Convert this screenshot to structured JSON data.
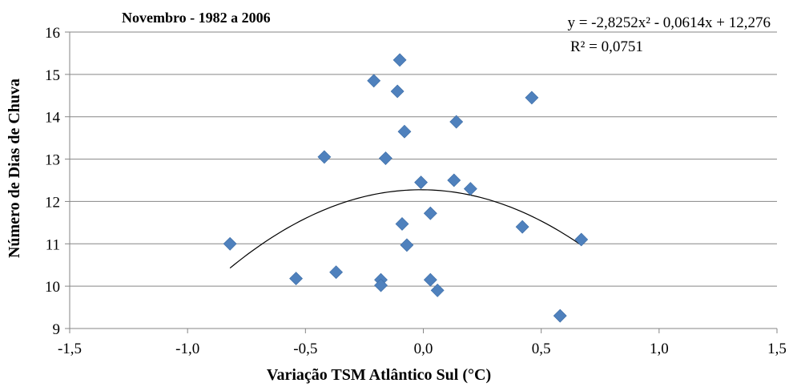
{
  "chart_data": {
    "type": "scatter",
    "title": "Novembro - 1982 a 2006",
    "xlabel": "Variação TSM Atlântico Sul (°C)",
    "ylabel": "Número de Dias de Chuva",
    "xlim": [
      -1.5,
      1.5
    ],
    "ylim": [
      9,
      16
    ],
    "xticks": [
      -1.5,
      -1.0,
      -0.5,
      0.0,
      0.5,
      1.0,
      1.5
    ],
    "xtick_labels": [
      "-1,5",
      "-1,0",
      "-0,5",
      "0,0",
      "0,5",
      "1,0",
      "1,5"
    ],
    "yticks": [
      9,
      10,
      11,
      12,
      13,
      14,
      15,
      16
    ],
    "ytick_labels": [
      "9",
      "10",
      "11",
      "12",
      "13",
      "14",
      "15",
      "16"
    ],
    "grid": "horizontal",
    "marker_color": "#4F81BD",
    "marker": "diamond",
    "points": [
      {
        "x": -0.82,
        "y": 11.0
      },
      {
        "x": -0.54,
        "y": 10.18
      },
      {
        "x": -0.42,
        "y": 13.05
      },
      {
        "x": -0.37,
        "y": 10.33
      },
      {
        "x": -0.21,
        "y": 14.85
      },
      {
        "x": -0.18,
        "y": 10.15
      },
      {
        "x": -0.18,
        "y": 10.02
      },
      {
        "x": -0.16,
        "y": 13.02
      },
      {
        "x": -0.11,
        "y": 14.6
      },
      {
        "x": -0.1,
        "y": 15.34
      },
      {
        "x": -0.09,
        "y": 11.47
      },
      {
        "x": -0.08,
        "y": 13.65
      },
      {
        "x": -0.07,
        "y": 10.97
      },
      {
        "x": -0.01,
        "y": 12.45
      },
      {
        "x": 0.03,
        "y": 11.72
      },
      {
        "x": 0.03,
        "y": 10.15
      },
      {
        "x": 0.06,
        "y": 9.9
      },
      {
        "x": 0.13,
        "y": 12.5
      },
      {
        "x": 0.14,
        "y": 13.88
      },
      {
        "x": 0.2,
        "y": 12.3
      },
      {
        "x": 0.42,
        "y": 11.4
      },
      {
        "x": 0.46,
        "y": 14.45
      },
      {
        "x": 0.58,
        "y": 9.3
      },
      {
        "x": 0.67,
        "y": 11.1
      }
    ],
    "trendline": {
      "type": "polynomial",
      "coefficients": [
        -2.8252,
        -0.0614,
        12.276
      ],
      "x_range": [
        -0.82,
        0.67
      ],
      "equation": "y = -2,8252x² - 0,0614x + 12,276",
      "r_squared": "R² = 0,0751"
    }
  }
}
